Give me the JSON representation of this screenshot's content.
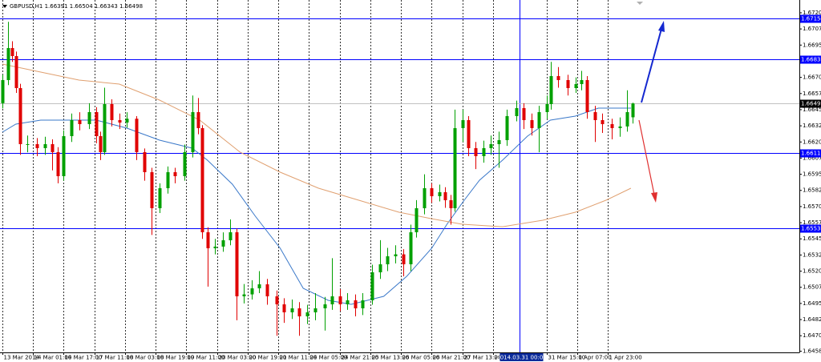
{
  "chart_data": {
    "type": "candlestick",
    "title": "GBPUSD,H1  1.66391 1.66504 1.66343 1.66498",
    "bull_color": "#00a000",
    "bear_color": "#e00000",
    "x": [
      0,
      3,
      5,
      7,
      9,
      13,
      18,
      22,
      26,
      29,
      32,
      36,
      40,
      45,
      49,
      51,
      53,
      57,
      61,
      65,
      70,
      74,
      78,
      82,
      86,
      90,
      95,
      99,
      102,
      104,
      107,
      111,
      115,
      119,
      122,
      126,
      130,
      134,
      138,
      143,
      147,
      151,
      155,
      159,
      163,
      168,
      172,
      176,
      180,
      184,
      188,
      193,
      197,
      201,
      205,
      209,
      213,
      216,
      220,
      224,
      228,
      231,
      234,
      236,
      240,
      243,
      247,
      251,
      255,
      259,
      263,
      268,
      272,
      276,
      280,
      284,
      286,
      290,
      295,
      299,
      302,
      305,
      309,
      313,
      318,
      322,
      326,
      329
    ],
    "open": [
      1.665,
      1.66679,
      1.66927,
      1.66865,
      1.66617,
      1.66183,
      1.66183,
      1.66152,
      1.66183,
      1.66121,
      1.65935,
      1.66245,
      1.66369,
      1.66338,
      1.66431,
      1.66245,
      1.66121,
      1.66493,
      1.66369,
      1.6635,
      1.6638,
      1.66121,
      1.65966,
      1.65687,
      1.65842,
      1.65966,
      1.65935,
      1.66121,
      1.66431,
      1.66307,
      1.65501,
      1.65377,
      1.6539,
      1.65439,
      1.65501,
      1.65005,
      1.6502,
      1.65067,
      1.65098,
      1.65005,
      1.64943,
      1.64881,
      1.64912,
      1.6485,
      1.64881,
      1.64912,
      1.64943,
      1.65005,
      1.64943,
      1.64974,
      1.64912,
      1.64974,
      1.65191,
      1.65253,
      1.65315,
      1.6533,
      1.65253,
      1.65501,
      1.65687,
      1.65842,
      1.6578,
      1.65811,
      1.65749,
      1.65687,
      1.66307,
      1.66369,
      1.66152,
      1.6609,
      1.66152,
      1.66183,
      1.66214,
      1.664,
      1.66462,
      1.66369,
      1.66307,
      1.66431,
      1.66493,
      1.6671,
      1.66679,
      1.66617,
      1.66648,
      1.66679,
      1.66431,
      1.66369,
      1.66338,
      1.66307,
      1.6632,
      1.66391
    ],
    "high": [
      1.6672,
      1.6713,
      1.6698,
      1.669,
      1.6665,
      1.6625,
      1.6623,
      1.6624,
      1.6622,
      1.6616,
      1.6629,
      1.6642,
      1.6643,
      1.665,
      1.6647,
      1.6628,
      1.6662,
      1.6653,
      1.6642,
      1.6643,
      1.664,
      1.6615,
      1.66,
      1.6588,
      1.6601,
      1.66,
      1.6618,
      1.6656,
      1.6654,
      1.6633,
      1.6554,
      1.6545,
      1.655,
      1.656,
      1.6553,
      1.651,
      1.6513,
      1.652,
      1.6514,
      1.6505,
      1.6499,
      1.6498,
      1.6496,
      1.6494,
      1.6503,
      1.65,
      1.653,
      1.6506,
      1.6503,
      1.6502,
      1.6503,
      1.6525,
      1.6544,
      1.6538,
      1.654,
      1.6537,
      1.6556,
      1.6575,
      1.6595,
      1.6588,
      1.6587,
      1.6585,
      1.6579,
      1.6645,
      1.6645,
      1.664,
      1.662,
      1.6621,
      1.6625,
      1.6628,
      1.6645,
      1.6652,
      1.665,
      1.6642,
      1.6648,
      1.6656,
      1.6682,
      1.6678,
      1.6672,
      1.667,
      1.6675,
      1.6671,
      1.6648,
      1.6642,
      1.6638,
      1.6639,
      1.666,
      1.66504
    ],
    "low": [
      1.6646,
      1.6664,
      1.6682,
      1.6658,
      1.661,
      1.6612,
      1.6609,
      1.661,
      1.6598,
      1.6588,
      1.659,
      1.662,
      1.6629,
      1.663,
      1.6619,
      1.6606,
      1.661,
      1.6632,
      1.663,
      1.6631,
      1.6606,
      1.659,
      1.6548,
      1.6565,
      1.658,
      1.6588,
      1.659,
      1.6608,
      1.6626,
      1.6545,
      1.6508,
      1.6533,
      1.6535,
      1.654,
      1.6482,
      1.6495,
      1.6498,
      1.6503,
      1.6494,
      1.647,
      1.648,
      1.6483,
      1.647,
      1.6479,
      1.6482,
      1.6474,
      1.649,
      1.6489,
      1.649,
      1.6485,
      1.6486,
      1.6494,
      1.6514,
      1.652,
      1.6526,
      1.6516,
      1.652,
      1.6546,
      1.6564,
      1.6573,
      1.6574,
      1.6569,
      1.6556,
      1.6566,
      1.662,
      1.6609,
      1.6599,
      1.6604,
      1.661,
      1.66,
      1.6617,
      1.6636,
      1.663,
      1.6625,
      1.6612,
      1.6638,
      1.6645,
      1.6662,
      1.6656,
      1.6658,
      1.666,
      1.6638,
      1.662,
      1.6627,
      1.6622,
      1.6624,
      1.6628,
      1.66343
    ],
    "close": [
      1.66679,
      1.66927,
      1.66865,
      1.66617,
      1.66183,
      1.66183,
      1.66152,
      1.66183,
      1.66121,
      1.65935,
      1.66245,
      1.66369,
      1.66338,
      1.66431,
      1.66245,
      1.66121,
      1.66493,
      1.66369,
      1.6635,
      1.6638,
      1.66121,
      1.65966,
      1.65687,
      1.65842,
      1.65966,
      1.65935,
      1.66121,
      1.66431,
      1.66307,
      1.65501,
      1.65377,
      1.6539,
      1.65439,
      1.65501,
      1.65005,
      1.6502,
      1.65067,
      1.65098,
      1.65005,
      1.64943,
      1.64881,
      1.64912,
      1.6485,
      1.64881,
      1.64912,
      1.64943,
      1.65005,
      1.64943,
      1.64974,
      1.64912,
      1.64974,
      1.65191,
      1.65253,
      1.65315,
      1.6533,
      1.65253,
      1.65501,
      1.65687,
      1.65842,
      1.6578,
      1.65811,
      1.65749,
      1.65687,
      1.66307,
      1.66369,
      1.66152,
      1.6609,
      1.66152,
      1.66183,
      1.66214,
      1.664,
      1.66462,
      1.66369,
      1.66307,
      1.66431,
      1.66493,
      1.6671,
      1.66679,
      1.66617,
      1.66648,
      1.66679,
      1.66431,
      1.66369,
      1.66338,
      1.66307,
      1.6632,
      1.66431,
      1.66498
    ],
    "moving_averages": [
      {
        "color": "#3a78c9",
        "x": [
          0,
          7,
          20,
          32,
          49,
          65,
          82,
          99,
          107,
          120,
          132,
          145,
          157,
          170,
          182,
          199,
          211,
          224,
          232,
          241,
          249,
          261,
          274,
          286,
          299,
          311,
          328
        ],
        "values": [
          1.66276,
          1.66338,
          1.66369,
          1.66369,
          1.66369,
          1.66307,
          1.66214,
          1.66152,
          1.66059,
          1.65873,
          1.65625,
          1.65377,
          1.65067,
          1.64974,
          1.64943,
          1.65005,
          1.6516,
          1.65377,
          1.65563,
          1.65749,
          1.65904,
          1.66059,
          1.66245,
          1.66369,
          1.664,
          1.66462,
          1.66462
        ]
      },
      {
        "color": "#e0a070",
        "x": [
          0,
          20,
          40,
          61,
          82,
          103,
          124,
          145,
          165,
          186,
          207,
          224,
          240,
          261,
          282,
          299,
          315,
          328
        ],
        "values": [
          1.66803,
          1.66741,
          1.66679,
          1.66648,
          1.66524,
          1.66369,
          1.66121,
          1.65966,
          1.65842,
          1.65749,
          1.65656,
          1.65606,
          1.65563,
          1.65544,
          1.65594,
          1.65656,
          1.65749,
          1.65842
        ]
      }
    ],
    "levels": [
      {
        "value": 1.67154,
        "color": "#0000ff"
      },
      {
        "value": 1.66838,
        "color": "#0000ff"
      },
      {
        "value": 1.66115,
        "color": "#0000ff"
      },
      {
        "value": 1.65532,
        "color": "#0000ff"
      }
    ],
    "current_price": 1.66498,
    "cursor": {
      "value": 270,
      "label": "2014.03.31 00:00"
    },
    "xlim": [
      -1.255,
      415.9
    ],
    "xticks": [
      {
        "value": 0,
        "label": "13 Mar 2014"
      },
      {
        "value": 16,
        "label": "14 Mar 01:00"
      },
      {
        "value": 32,
        "label": "14 Mar 17:00"
      },
      {
        "value": 48,
        "label": "17 Mar 11:00"
      },
      {
        "value": 64,
        "label": "18 Mar 03:00"
      },
      {
        "value": 80,
        "label": "18 Mar 19:00"
      },
      {
        "value": 96,
        "label": "19 Mar 11:00"
      },
      {
        "value": 112,
        "label": "20 Mar 03:00"
      },
      {
        "value": 128,
        "label": "20 Mar 19:00"
      },
      {
        "value": 144,
        "label": "21 Mar 11:00"
      },
      {
        "value": 160,
        "label": "24 Mar 05:00"
      },
      {
        "value": 176,
        "label": "24 Mar 21:00"
      },
      {
        "value": 192,
        "label": "25 Mar 13:00"
      },
      {
        "value": 208,
        "label": "26 Mar 05:00"
      },
      {
        "value": 224,
        "label": "26 Mar 21:00"
      },
      {
        "value": 240,
        "label": "27 Mar 13:00"
      },
      {
        "value": 256,
        "label": "28 Mar 05:00"
      },
      {
        "value": 284,
        "label": "31 Mar 15:00"
      },
      {
        "value": 300,
        "label": "1 Apr 07:00"
      },
      {
        "value": 316,
        "label": "1 Apr 23:00"
      }
    ],
    "ylim": [
      1.64571,
      1.67299
    ],
    "yticks": [
      {
        "value": 1.672,
        "label": "1.67200"
      },
      1.67075,
      {
        "value": 1.6695,
        "label": "1.66950"
      },
      {
        "value": 1.667,
        "label": "1.66700"
      },
      1.66575,
      {
        "value": 1.6645,
        "label": "1.66450"
      },
      1.66325,
      {
        "value": 1.662,
        "label": "1.66200"
      },
      1.66075,
      {
        "value": 1.6595,
        "label": "1.65950"
      },
      1.65825,
      {
        "value": 1.657,
        "label": "1.65700"
      },
      1.65575,
      {
        "value": 1.6545,
        "label": "1.65450"
      },
      1.65325,
      {
        "value": 1.652,
        "label": "1.65200"
      },
      1.65075,
      {
        "value": 1.6495,
        "label": "1.64950"
      },
      1.64825,
      {
        "value": 1.647,
        "label": "1.64700"
      },
      {
        "value": 1.6458,
        "label": "1.64580"
      }
    ]
  }
}
